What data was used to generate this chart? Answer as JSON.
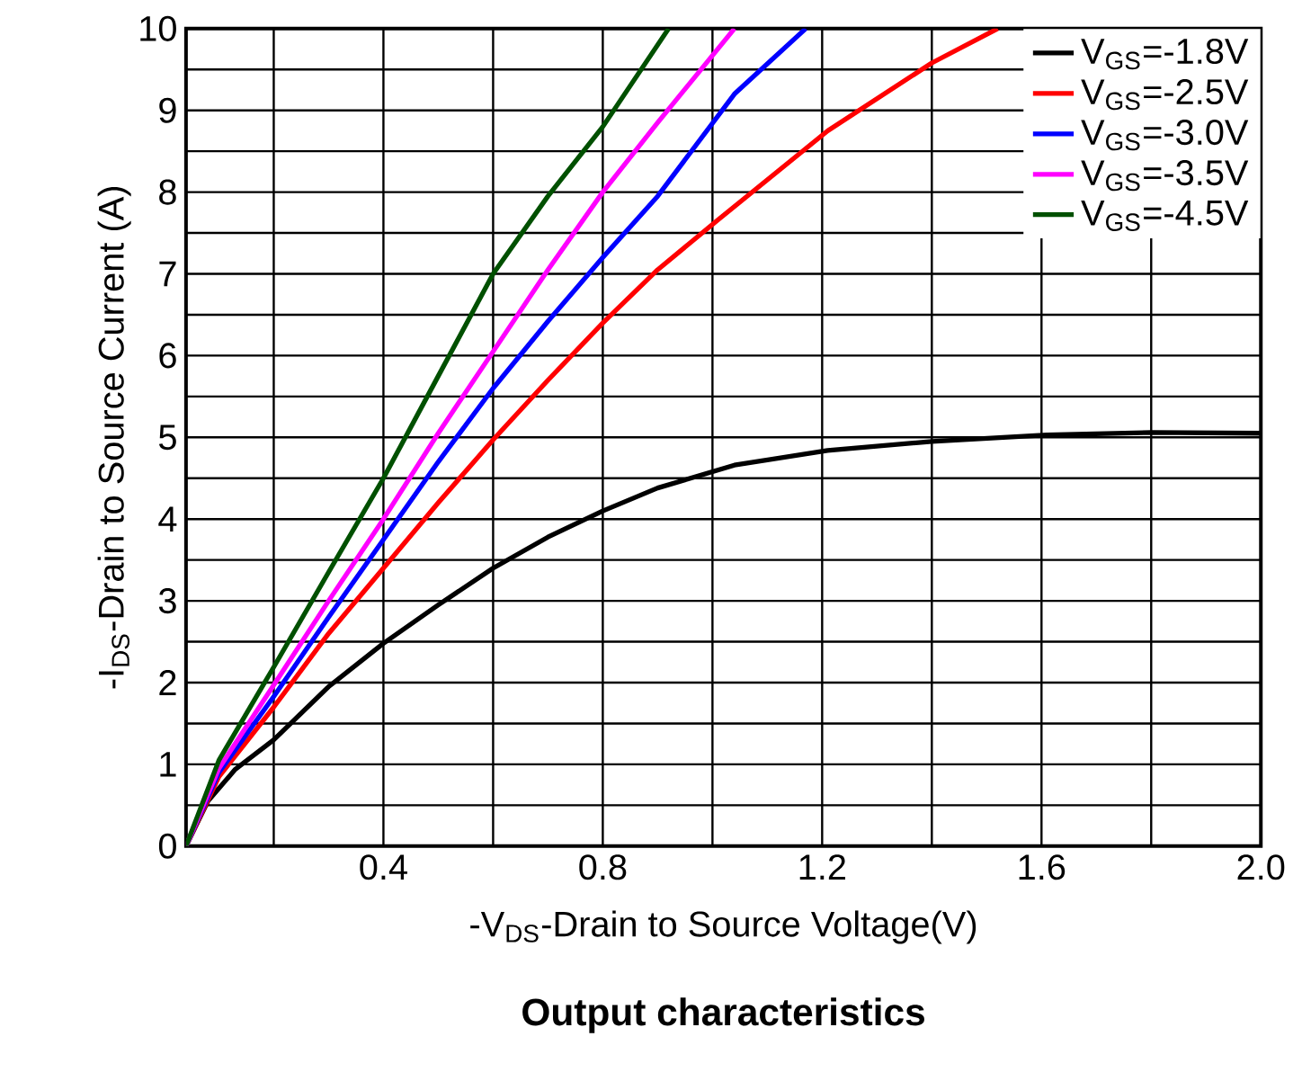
{
  "chart_data": {
    "type": "line",
    "title": "Output characteristics",
    "xlabel": "-V$_{DS}$-Drain to Source Voltage(V)",
    "ylabel": "-I$_{DS}$-Drain to Source Current (A)",
    "xlim": [
      0.04,
      2.0
    ],
    "ylim": [
      0,
      10
    ],
    "xticks": [
      {
        "value": 0.2,
        "label": null
      },
      0.4,
      {
        "value": 0.6,
        "label": null
      },
      0.8,
      {
        "value": 1.0,
        "label": null
      },
      1.2,
      {
        "value": 1.4,
        "label": null
      },
      1.6,
      {
        "value": 1.8,
        "label": null
      },
      {
        "value": 2.0,
        "label": "2.0"
      }
    ],
    "yticks": [
      0,
      {
        "value": 0.5,
        "label": null
      },
      1,
      {
        "value": 1.5,
        "label": null
      },
      2,
      {
        "value": 2.5,
        "label": null
      },
      3,
      {
        "value": 3.5,
        "label": null
      },
      4,
      {
        "value": 4.5,
        "label": null
      },
      5,
      {
        "value": 5.5,
        "label": null
      },
      6,
      {
        "value": 6.5,
        "label": null
      },
      7,
      {
        "value": 7.5,
        "label": null
      },
      8,
      {
        "value": 8.5,
        "label": null
      },
      9,
      {
        "value": 9.5,
        "label": null
      },
      10
    ],
    "grid": true,
    "legend": "top right",
    "marker": "none",
    "line_style": "solid",
    "series": [
      {
        "name": "V$_{GS}$=-1.8V",
        "color": "#000000",
        "x": [
          0.04,
          0.08,
          0.13,
          0.2,
          0.3,
          0.4,
          0.5,
          0.6,
          0.7,
          0.8,
          0.9,
          1.04,
          1.21,
          1.4,
          1.61,
          1.8,
          2.0
        ],
        "values": [
          0,
          0.55,
          0.94,
          1.3,
          1.95,
          2.48,
          2.95,
          3.4,
          3.78,
          4.1,
          4.38,
          4.66,
          4.84,
          4.95,
          5.03,
          5.06,
          5.05
        ]
      },
      {
        "name": "V$_{GS}$=-2.5V",
        "color": "#ff0000",
        "x": [
          0.04,
          0.1,
          0.2,
          0.3,
          0.4,
          0.5,
          0.6,
          0.7,
          0.8,
          0.9,
          1.01,
          1.21,
          1.4,
          1.52
        ],
        "values": [
          0,
          0.85,
          1.7,
          2.6,
          3.4,
          4.2,
          4.97,
          5.7,
          6.4,
          7.05,
          7.66,
          8.75,
          9.58,
          10
        ]
      },
      {
        "name": "V$_{GS}$=-3.0V",
        "color": "#0000ff",
        "x": [
          0.04,
          0.1,
          0.2,
          0.3,
          0.4,
          0.5,
          0.6,
          0.7,
          0.8,
          0.9,
          1.04,
          1.17
        ],
        "values": [
          0,
          0.9,
          1.83,
          2.8,
          3.75,
          4.7,
          5.6,
          6.42,
          7.2,
          7.95,
          9.2,
          10
        ]
      },
      {
        "name": "V$_{GS}$=-3.5V",
        "color": "#ff00ff",
        "x": [
          0.04,
          0.1,
          0.2,
          0.3,
          0.4,
          0.5,
          0.6,
          0.7,
          0.8,
          0.9,
          1.04
        ],
        "values": [
          0,
          0.95,
          1.97,
          3.0,
          4.0,
          5.05,
          6.05,
          7.05,
          8.0,
          8.85,
          10
        ]
      },
      {
        "name": "V$_{GS}$=-4.5V",
        "color": "#005000",
        "x": [
          0.04,
          0.1,
          0.2,
          0.3,
          0.4,
          0.5,
          0.6,
          0.7,
          0.8,
          0.92
        ],
        "values": [
          0,
          1.05,
          2.19,
          3.35,
          4.5,
          5.75,
          7.0,
          7.95,
          8.8,
          10
        ]
      }
    ]
  }
}
